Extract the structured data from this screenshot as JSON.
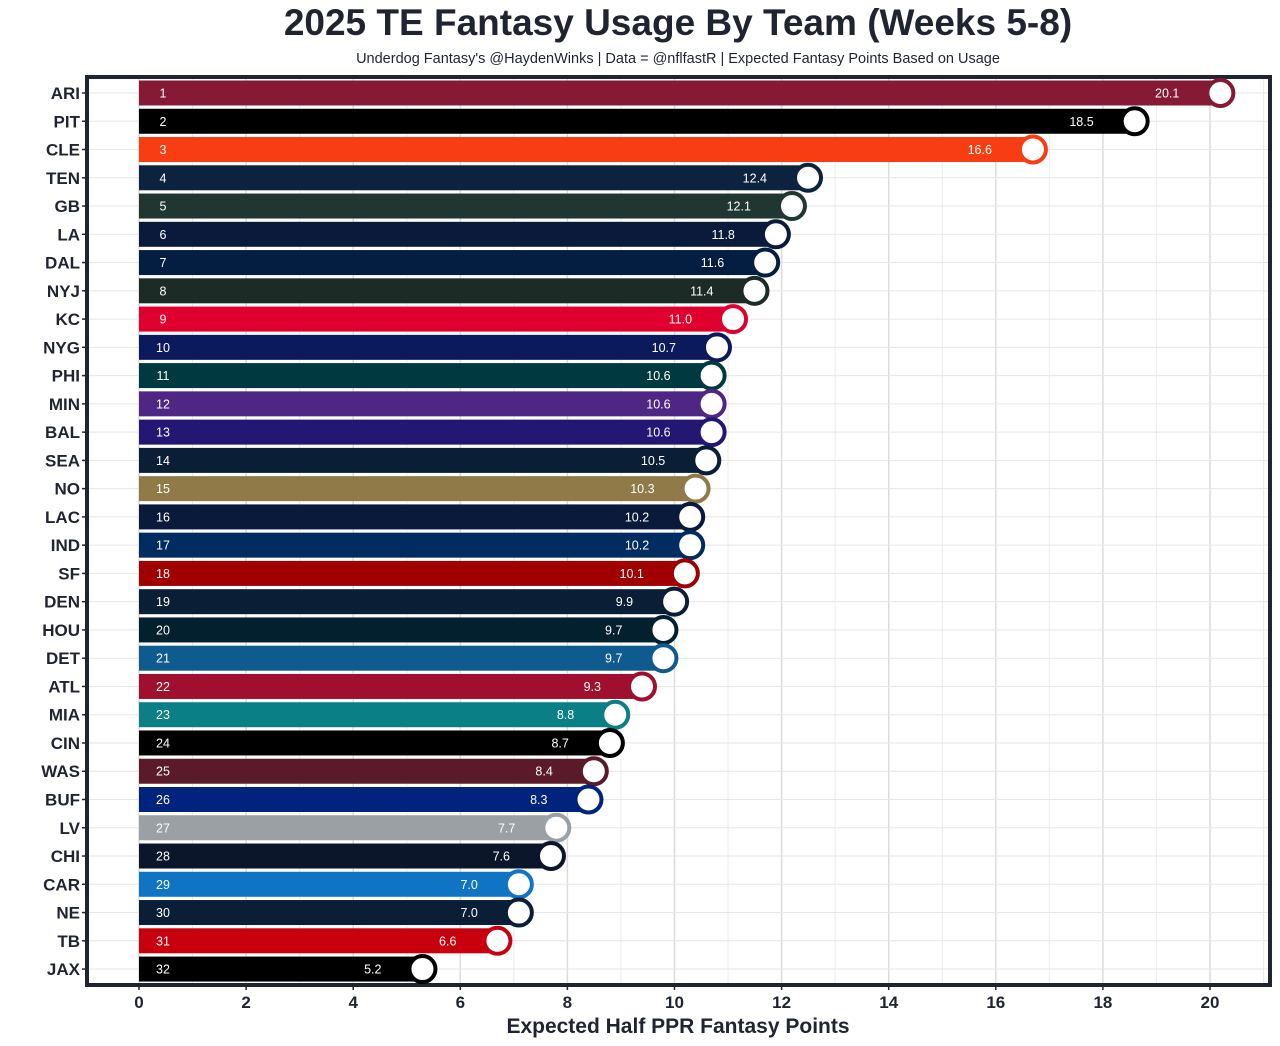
{
  "chart_data": {
    "type": "bar",
    "orientation": "horizontal",
    "title": "2025 TE Fantasy Usage By Team (Weeks 5-8)",
    "subtitle": "Underdog Fantasy's @HaydenWinks | Data = @nflfastR | Expected Fantasy Points Based on Usage",
    "xlabel": "Expected Half PPR Fantasy Points",
    "ylabel": "",
    "xlim": [
      -1,
      21.5
    ],
    "xticks": [
      "0",
      "2",
      "4",
      "6",
      "8",
      "10",
      "12",
      "14",
      "16",
      "18",
      "20"
    ],
    "grid": true,
    "categories": [
      "ARI",
      "PIT",
      "CLE",
      "TEN",
      "GB",
      "LA",
      "DAL",
      "NYJ",
      "KC",
      "NYG",
      "PHI",
      "MIN",
      "BAL",
      "SEA",
      "NO",
      "LAC",
      "IND",
      "SF",
      "DEN",
      "HOU",
      "DET",
      "ATL",
      "MIA",
      "CIN",
      "WAS",
      "BUF",
      "LV",
      "CHI",
      "CAR",
      "NE",
      "TB",
      "JAX"
    ],
    "ranks": [
      "1",
      "2",
      "3",
      "4",
      "5",
      "6",
      "7",
      "8",
      "9",
      "10",
      "11",
      "12",
      "13",
      "14",
      "15",
      "16",
      "17",
      "18",
      "19",
      "20",
      "21",
      "22",
      "23",
      "24",
      "25",
      "26",
      "27",
      "28",
      "29",
      "30",
      "31",
      "32"
    ],
    "values": [
      20.1,
      18.5,
      16.6,
      12.4,
      12.1,
      11.8,
      11.6,
      11.4,
      11.0,
      10.7,
      10.6,
      10.6,
      10.6,
      10.5,
      10.3,
      10.2,
      10.2,
      10.1,
      9.9,
      9.7,
      9.7,
      9.3,
      8.8,
      8.7,
      8.4,
      8.3,
      7.7,
      7.6,
      7.0,
      7.0,
      6.6,
      5.2
    ],
    "value_labels": [
      "20.1",
      "18.5",
      "16.6",
      "12.4",
      "12.1",
      "11.8",
      "11.6",
      "11.4",
      "11.0",
      "10.7",
      "10.6",
      "10.6",
      "10.6",
      "10.5",
      "10.3",
      "10.2",
      "10.2",
      "10.1",
      "9.9",
      "9.7",
      "9.7",
      "9.3",
      "8.8",
      "8.7",
      "8.4",
      "8.3",
      "7.7",
      "7.6",
      "7.0",
      "7.0",
      "6.6",
      "5.2"
    ],
    "colors": [
      "#861a35",
      "#000000",
      "#f83d12",
      "#0c2340",
      "#203731",
      "#0a1a3a",
      "#041e42",
      "#1c2b25",
      "#e0002d",
      "#0b1a5c",
      "#00393f",
      "#4f2683",
      "#241773",
      "#0a1e36",
      "#8f7a48",
      "#0a1a3a",
      "#002c5f",
      "#a00000",
      "#0a1e36",
      "#03202f",
      "#0f5a8f",
      "#a0102e",
      "#0a7f86",
      "#000000",
      "#5a1a2a",
      "#00237d",
      "#9aa0a4",
      "#0b162a",
      "#0f74c4",
      "#0a1e36",
      "#c8000d",
      "#000000"
    ]
  }
}
